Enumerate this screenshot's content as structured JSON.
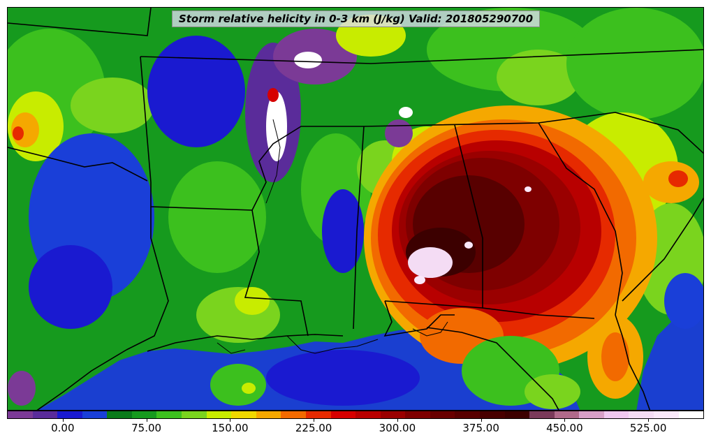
{
  "title": "Storm relative helicity in 0-3 km (J/kg) Valid: 201805290700",
  "colorbar": {
    "colors": [
      "#7b3a96",
      "#5a2c9a",
      "#1a1ad0",
      "#1a3fd8",
      "#0a7a1a",
      "#169a1e",
      "#3cc01e",
      "#7ad41e",
      "#c8ec00",
      "#f0d800",
      "#f5a800",
      "#f26a00",
      "#e62a00",
      "#d60000",
      "#b80000",
      "#9a0000",
      "#7e0000",
      "#680000",
      "#580000",
      "#480000",
      "#3c0000",
      "#7a3a5a",
      "#b06a8a",
      "#d8a0c8",
      "#f0c8f0",
      "#f4dcf4",
      "#fae8fa",
      "#ffffff"
    ],
    "tick_labels": [
      "0.00",
      "75.00",
      "150.00",
      "225.00",
      "300.00",
      "375.00",
      "450.00",
      "525.00"
    ],
    "tick_values": [
      0,
      75,
      150,
      225,
      300,
      375,
      450,
      525
    ],
    "min": -50,
    "max": 575
  },
  "map": {
    "field": "storm-relative-helicity",
    "region": "south-central-southeastern-us",
    "ocean_color": "#1a3fd0",
    "land_base_color": "#169a1e"
  }
}
